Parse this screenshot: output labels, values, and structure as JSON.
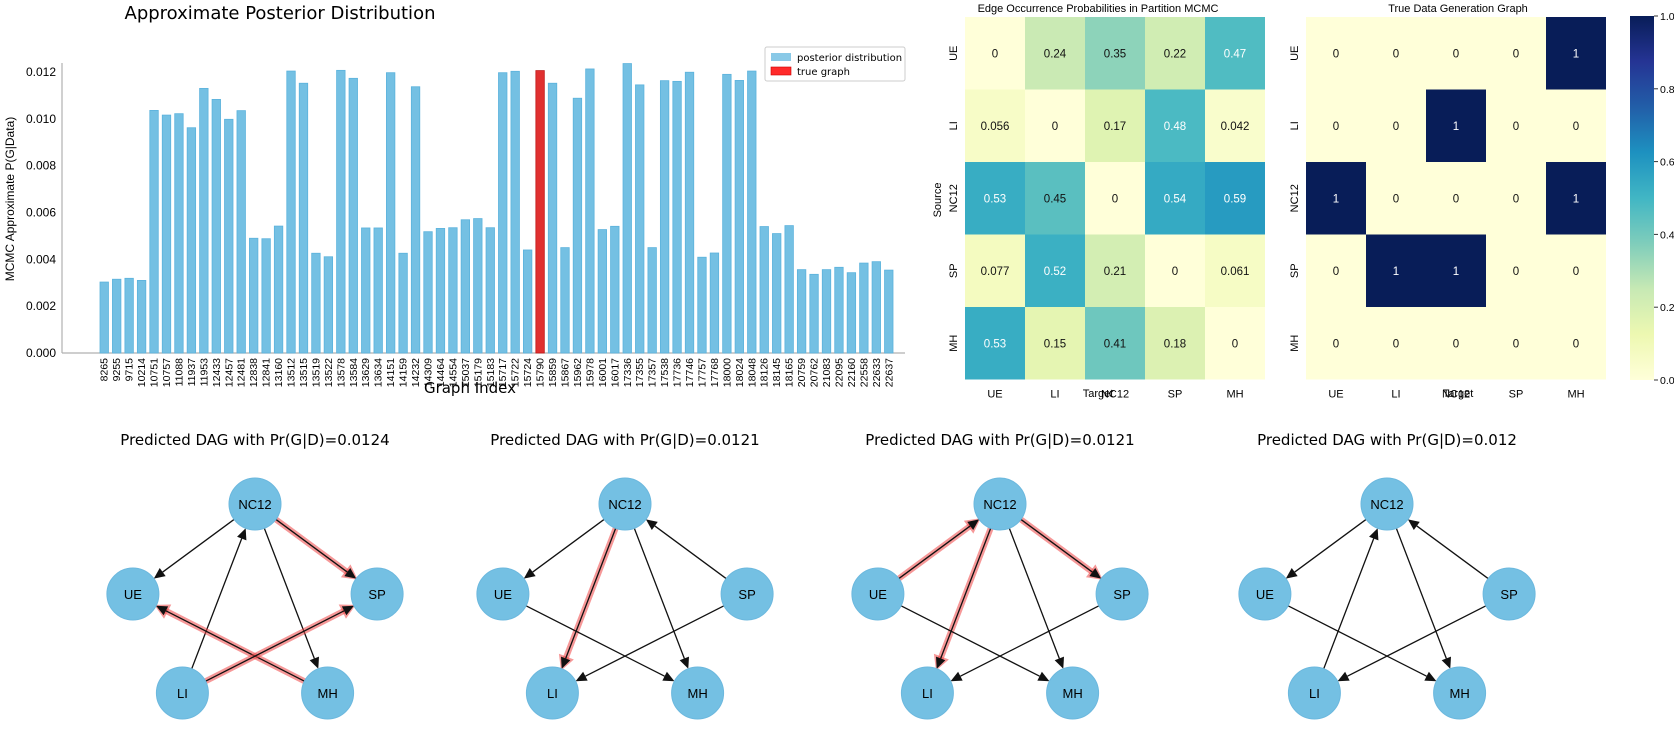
{
  "chart_data": [
    {
      "type": "bar",
      "title": "Approximate Posterior Distribution",
      "xlabel": "Graph Index",
      "ylabel": "MCMC Approximate P(G|Data)",
      "ylim": [
        0,
        0.0125
      ],
      "yticks": [
        "0.000",
        "0.002",
        "0.004",
        "0.006",
        "0.008",
        "0.010",
        "0.012"
      ],
      "ytick_values": [
        0,
        0.002,
        0.004,
        0.006,
        0.008,
        0.01,
        0.012
      ],
      "grid": false,
      "legend": {
        "placement": "top-right",
        "entries": [
          {
            "label": "posterior distribution",
            "color": "#74c0e3"
          },
          {
            "label": "true graph",
            "color": "#e03030"
          }
        ]
      },
      "highlight_category": "15790",
      "categories": [
        "8265",
        "9255",
        "9715",
        "10214",
        "10751",
        "10757",
        "11088",
        "11937",
        "11953",
        "12433",
        "12457",
        "12481",
        "12838",
        "12841",
        "13160",
        "13512",
        "13515",
        "13519",
        "13522",
        "13578",
        "13584",
        "13629",
        "13634",
        "14151",
        "14159",
        "14232",
        "14309",
        "14464",
        "14554",
        "15037",
        "15179",
        "15183",
        "15717",
        "15722",
        "15724",
        "15790",
        "15859",
        "15867",
        "15962",
        "15978",
        "16001",
        "16017",
        "17336",
        "17355",
        "17357",
        "17538",
        "17736",
        "17746",
        "17757",
        "17768",
        "18000",
        "18024",
        "18048",
        "18126",
        "18145",
        "18165",
        "20759",
        "20762",
        "21083",
        "22095",
        "22160",
        "22558",
        "22633",
        "22637"
      ],
      "values": [
        0.00303,
        0.00315,
        0.00319,
        0.0031,
        0.01036,
        0.01016,
        0.01022,
        0.00962,
        0.0113,
        0.01083,
        0.00998,
        0.01035,
        0.0049,
        0.00488,
        0.00542,
        0.01204,
        0.01152,
        0.00426,
        0.00411,
        0.01207,
        0.01173,
        0.00534,
        0.00534,
        0.01197,
        0.00426,
        0.01137,
        0.00518,
        0.00532,
        0.00535,
        0.00569,
        0.00574,
        0.00535,
        0.01197,
        0.01203,
        0.0044,
        0.01206,
        0.01152,
        0.0045,
        0.01088,
        0.01213,
        0.00527,
        0.00541,
        0.01236,
        0.01145,
        0.0045,
        0.01163,
        0.0116,
        0.01199,
        0.00409,
        0.00427,
        0.0119,
        0.01164,
        0.01204,
        0.0054,
        0.0051,
        0.00544,
        0.00356,
        0.00336,
        0.00356,
        0.00366,
        0.00343,
        0.00384,
        0.0039,
        0.00354
      ]
    },
    {
      "type": "heatmap",
      "title": "Edge Occurrence Probabilities in Partition MCMC",
      "xlabel": "Target",
      "ylabel": "Source",
      "x": [
        "UE",
        "LI",
        "NC12",
        "SP",
        "MH"
      ],
      "y": [
        "UE",
        "LI",
        "NC12",
        "SP",
        "MH"
      ],
      "values": [
        [
          0,
          0.24,
          0.35,
          0.22,
          0.47
        ],
        [
          0.056,
          0,
          0.17,
          0.48,
          0.042
        ],
        [
          0.53,
          0.45,
          0,
          0.54,
          0.59
        ],
        [
          0.077,
          0.52,
          0.21,
          0,
          0.061
        ],
        [
          0.53,
          0.15,
          0.41,
          0.18,
          0
        ]
      ],
      "labels": [
        [
          "0",
          "0.24",
          "0.35",
          "0.22",
          "0.47"
        ],
        [
          "0.056",
          "0",
          "0.17",
          "0.48",
          "0.042"
        ],
        [
          "0.53",
          "0.45",
          "0",
          "0.54",
          "0.59"
        ],
        [
          "0.077",
          "0.52",
          "0.21",
          "0",
          "0.061"
        ],
        [
          "0.53",
          "0.15",
          "0.41",
          "0.18",
          "0"
        ]
      ],
      "colormap": "YlGnBu",
      "vmin": 0,
      "vmax": 1
    },
    {
      "type": "heatmap",
      "title": "True Data Generation Graph",
      "xlabel": "Target",
      "ylabel": "",
      "x": [
        "UE",
        "LI",
        "NC12",
        "SP",
        "MH"
      ],
      "y": [
        "UE",
        "LI",
        "NC12",
        "SP",
        "MH"
      ],
      "values": [
        [
          0,
          0,
          0,
          0,
          1
        ],
        [
          0,
          0,
          1,
          0,
          0
        ],
        [
          1,
          0,
          0,
          0,
          1
        ],
        [
          0,
          1,
          1,
          0,
          0
        ],
        [
          0,
          0,
          0,
          0,
          0
        ]
      ],
      "labels": [
        [
          "0",
          "0",
          "0",
          "0",
          "1"
        ],
        [
          "0",
          "0",
          "1",
          "0",
          "0"
        ],
        [
          "1",
          "0",
          "0",
          "0",
          "1"
        ],
        [
          "0",
          "1",
          "1",
          "0",
          "0"
        ],
        [
          "0",
          "0",
          "0",
          "0",
          "0"
        ]
      ],
      "colormap": "YlGnBu",
      "vmin": 0,
      "vmax": 1,
      "colorbar": {
        "ticks": [
          "0.0",
          "0.2",
          "0.4",
          "0.6",
          "0.8",
          "1.0"
        ],
        "tick_values": [
          0,
          0.2,
          0.4,
          0.6,
          0.8,
          1.0
        ],
        "placement": "right"
      }
    }
  ],
  "dags": {
    "node_color": "#74c0e3",
    "highlight_color": "#ee4444",
    "nodes": [
      "NC12",
      "UE",
      "SP",
      "LI",
      "MH"
    ],
    "panels": [
      {
        "title": "Predicted DAG with Pr(G|D)=0.0124",
        "edges": [
          {
            "from": "NC12",
            "to": "UE",
            "highlight": false
          },
          {
            "from": "LI",
            "to": "NC12",
            "highlight": false
          },
          {
            "from": "NC12",
            "to": "MH",
            "highlight": false
          },
          {
            "from": "NC12",
            "to": "SP",
            "highlight": true
          },
          {
            "from": "MH",
            "to": "UE",
            "highlight": true
          },
          {
            "from": "LI",
            "to": "SP",
            "highlight": true
          }
        ]
      },
      {
        "title": "Predicted DAG with Pr(G|D)=0.0121",
        "edges": [
          {
            "from": "NC12",
            "to": "UE",
            "highlight": false
          },
          {
            "from": "NC12",
            "to": "LI",
            "highlight": true
          },
          {
            "from": "NC12",
            "to": "MH",
            "highlight": false
          },
          {
            "from": "SP",
            "to": "NC12",
            "highlight": false
          },
          {
            "from": "UE",
            "to": "MH",
            "highlight": false
          },
          {
            "from": "SP",
            "to": "LI",
            "highlight": false
          }
        ]
      },
      {
        "title": "Predicted DAG with Pr(G|D)=0.0121",
        "edges": [
          {
            "from": "UE",
            "to": "NC12",
            "highlight": true
          },
          {
            "from": "NC12",
            "to": "LI",
            "highlight": true
          },
          {
            "from": "NC12",
            "to": "SP",
            "highlight": true
          },
          {
            "from": "NC12",
            "to": "MH",
            "highlight": false
          },
          {
            "from": "UE",
            "to": "MH",
            "highlight": false
          },
          {
            "from": "SP",
            "to": "LI",
            "highlight": false
          }
        ]
      },
      {
        "title": "Predicted DAG with Pr(G|D)=0.012",
        "edges": [
          {
            "from": "NC12",
            "to": "UE",
            "highlight": false
          },
          {
            "from": "LI",
            "to": "NC12",
            "highlight": false
          },
          {
            "from": "NC12",
            "to": "MH",
            "highlight": false
          },
          {
            "from": "SP",
            "to": "NC12",
            "highlight": false
          },
          {
            "from": "UE",
            "to": "MH",
            "highlight": false
          },
          {
            "from": "SP",
            "to": "LI",
            "highlight": false
          }
        ]
      }
    ]
  }
}
